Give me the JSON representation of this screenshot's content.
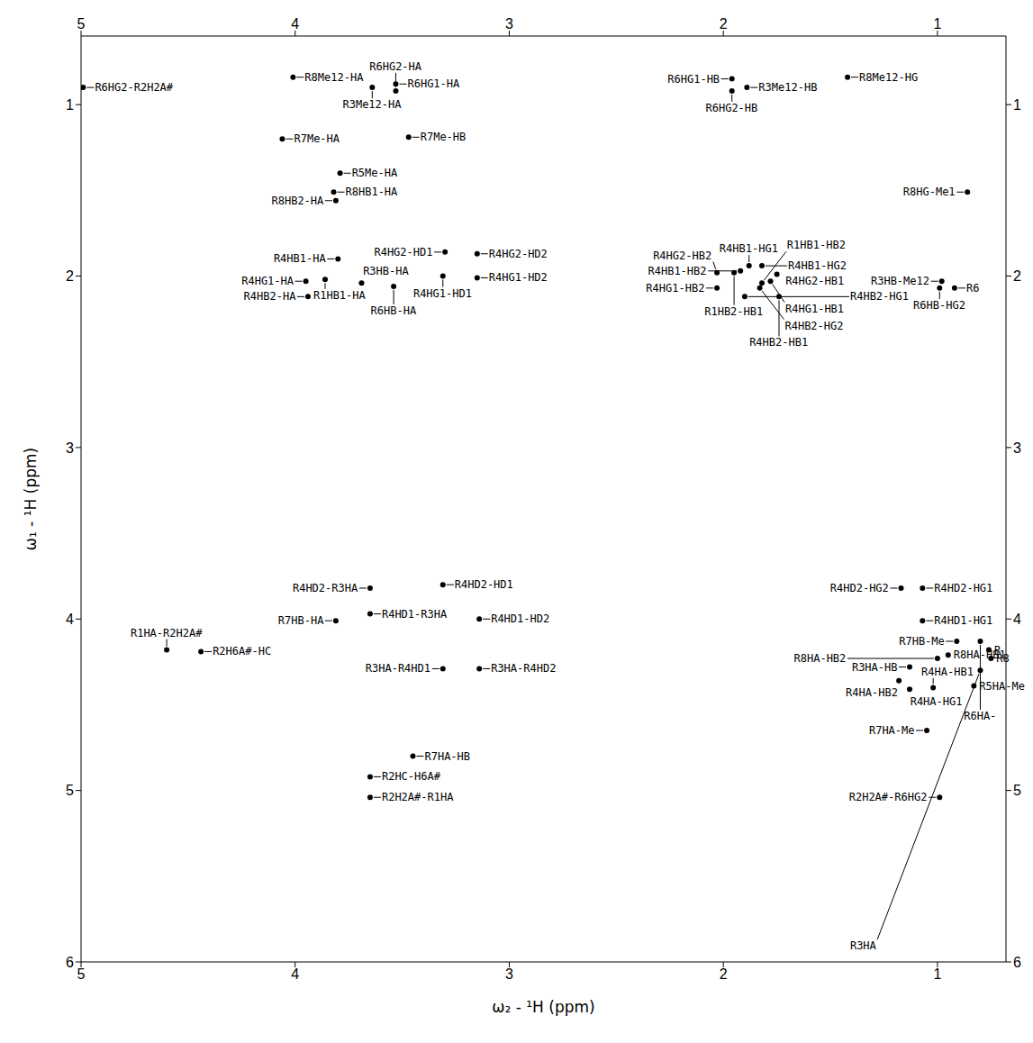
{
  "chart_data": {
    "type": "scatter",
    "x_label": "ω₂ - ¹H  (ppm)",
    "y_label": "ω₁ - ¹H  (ppm)",
    "xlim": [
      5,
      0.68
    ],
    "ylim": [
      6,
      0.6
    ],
    "xticks": [
      5,
      4,
      3,
      2,
      1
    ],
    "yticks": [
      1,
      2,
      3,
      4,
      5,
      6
    ],
    "grid": false,
    "marker": "circle",
    "color": "#000000",
    "labels": [
      "R6HG2-R2H2A#",
      "R8Me12-HA",
      "R6HG1-HA",
      "R3Me12-HA",
      "R6HG2-HA",
      "R7Me-HA",
      "R7Me-HB",
      "R5Me-HA",
      "R8HB1-HA",
      "R8HB2-HA",
      "R4HG2-HD1",
      "R4HG2-HD2",
      "R4HB1-HA",
      "R1HB1-HA",
      "R4HG1-HA",
      "R3HB-HA",
      "R4HB2-HA",
      "R4HG1-HD1",
      "R4HG1-HD2",
      "R6HB-HA",
      "R6HG1-HB",
      "R6HG2-HB",
      "R3Me12-HB",
      "R8Me12-HG",
      "R8HG-Me1",
      "R4HB1-HG1",
      "R4HB1-HB2",
      "R4HB1-HG2",
      "R1HB2-HB1",
      "R4HG2-HB2",
      "R4HG2-HB1",
      "R4HG1-HB1",
      "R1HB1-HB2",
      "R4HG1-HB2",
      "R4HB2-HG2",
      "R4HB2-HG1",
      "R4HB2-HB1",
      "R3HB-Me12",
      "R6HB-HG2",
      "R6",
      "R4HD2-HG2",
      "R4HD2-HG1",
      "R4HD1-HG1",
      "R4HD2-R3HA",
      "R4HD2-HD1",
      "R4HD1-R3HA",
      "R4HD1-HD2",
      "R2H6A#-HC",
      "R1HA-R2H2A#",
      "R7HB-HA",
      "R3HA-R4HD2",
      "R3HA-R4HD1",
      "R7HA-HB",
      "R3HA-HB",
      "R4HA-HB2",
      "R4HA-HG1",
      "R4HA-HB1",
      "R7HB-Me",
      "R6HA-",
      "R8HA-HB2",
      "R8HA-HB1",
      "R5HA-Me",
      "R7HA-Me",
      "R",
      "R8",
      "R3HA",
      "R2HC-H6A#",
      "R2H2A#-R1HA",
      "R2H2A#-R6HG2"
    ],
    "x": [
      4.99,
      4.01,
      3.53,
      3.64,
      3.53,
      4.06,
      3.47,
      3.79,
      3.82,
      3.81,
      3.3,
      3.15,
      3.8,
      3.86,
      3.95,
      3.69,
      3.94,
      3.31,
      3.15,
      3.54,
      1.96,
      1.96,
      1.89,
      1.42,
      0.86,
      1.88,
      1.92,
      1.82,
      1.95,
      2.03,
      1.75,
      1.78,
      1.82,
      2.03,
      1.83,
      1.9,
      1.74,
      0.98,
      0.99,
      0.92,
      1.17,
      1.07,
      1.07,
      3.65,
      3.31,
      3.65,
      3.14,
      4.44,
      4.6,
      3.81,
      3.14,
      3.31,
      3.45,
      1.13,
      1.18,
      1.13,
      1.02,
      0.91,
      0.8,
      1.0,
      0.95,
      0.83,
      1.05,
      0.76,
      0.75,
      0.8,
      3.65,
      3.65,
      0.99
    ],
    "values": [
      0.9,
      0.84,
      0.88,
      0.9,
      0.92,
      1.2,
      1.19,
      1.4,
      1.51,
      1.56,
      1.86,
      1.87,
      1.9,
      2.02,
      2.03,
      2.04,
      2.12,
      2.0,
      2.01,
      2.06,
      0.85,
      0.92,
      0.9,
      0.84,
      1.51,
      1.94,
      1.97,
      1.94,
      1.98,
      1.98,
      1.99,
      2.03,
      2.04,
      2.07,
      2.07,
      2.12,
      2.12,
      2.03,
      2.07,
      2.07,
      3.82,
      3.82,
      4.01,
      3.82,
      3.8,
      3.97,
      4.0,
      4.19,
      4.18,
      4.01,
      4.29,
      4.29,
      4.8,
      4.28,
      4.36,
      4.41,
      4.4,
      4.13,
      4.13,
      4.23,
      4.21,
      4.39,
      4.65,
      4.18,
      4.23,
      4.3,
      4.92,
      5.04,
      5.04
    ]
  }
}
